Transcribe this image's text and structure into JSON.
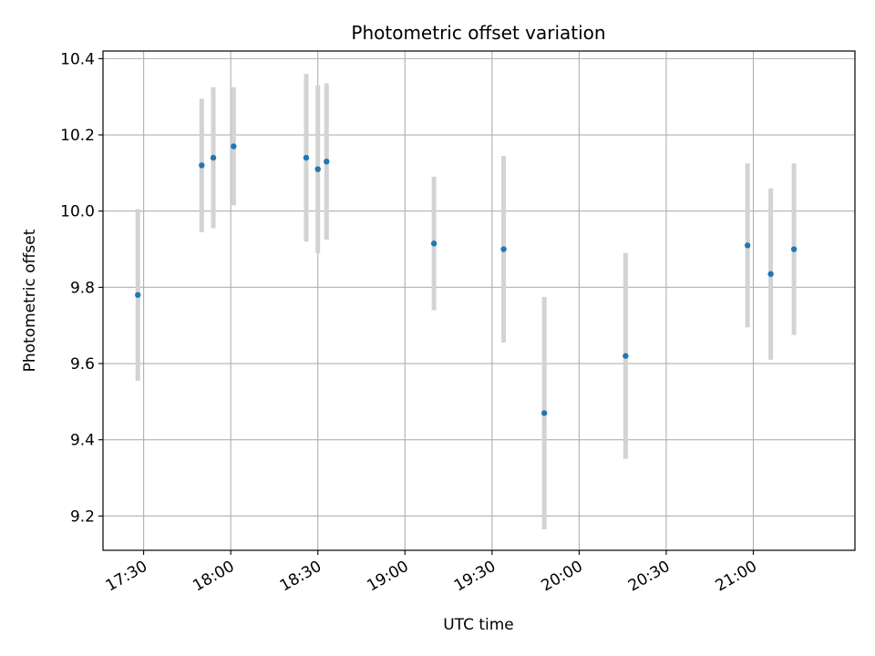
{
  "chart_data": {
    "type": "scatter",
    "title": "Photometric offset variation",
    "xlabel": "UTC time",
    "ylabel": "Photometric offset",
    "grid": true,
    "x_type": "time",
    "xlim": [
      "17:16",
      "21:35"
    ],
    "ylim": [
      9.11,
      10.42
    ],
    "x_ticks": [
      "17:30",
      "18:00",
      "18:30",
      "19:00",
      "19:30",
      "20:00",
      "20:30",
      "21:00"
    ],
    "y_ticks": [
      9.2,
      9.4,
      9.6,
      9.8,
      10.0,
      10.2,
      10.4
    ],
    "marker_color": "#1f77b4",
    "errorbar_color": "#d3d3d3",
    "points": [
      {
        "x": "17:28",
        "y": 9.78,
        "err": 0.225
      },
      {
        "x": "17:50",
        "y": 10.12,
        "err": 0.175
      },
      {
        "x": "17:54",
        "y": 10.14,
        "err": 0.185
      },
      {
        "x": "18:01",
        "y": 10.17,
        "err": 0.155
      },
      {
        "x": "18:26",
        "y": 10.14,
        "err": 0.22
      },
      {
        "x": "18:30",
        "y": 10.11,
        "err": 0.22
      },
      {
        "x": "18:33",
        "y": 10.13,
        "err": 0.205
      },
      {
        "x": "19:10",
        "y": 9.915,
        "err": 0.175
      },
      {
        "x": "19:34",
        "y": 9.9,
        "err": 0.245
      },
      {
        "x": "19:48",
        "y": 9.47,
        "err": 0.305
      },
      {
        "x": "20:16",
        "y": 9.62,
        "err": 0.27
      },
      {
        "x": "20:58",
        "y": 9.91,
        "err": 0.215
      },
      {
        "x": "21:06",
        "y": 9.835,
        "err": 0.225
      },
      {
        "x": "21:14",
        "y": 9.9,
        "err": 0.225
      }
    ]
  }
}
